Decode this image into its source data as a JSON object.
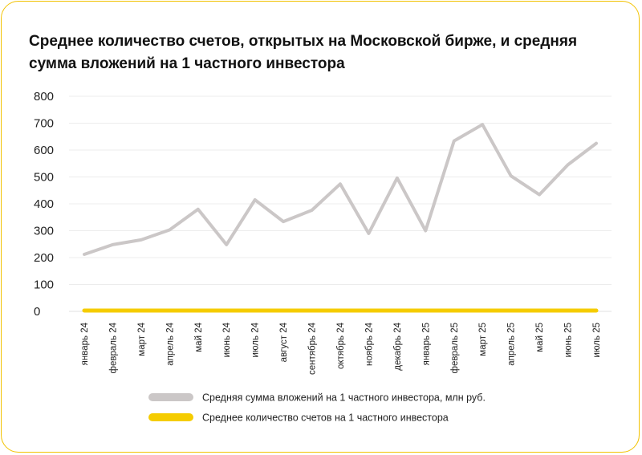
{
  "chart_data": {
    "type": "line",
    "title": "Среднее количество счетов, открытых на Московской бирже, и средняя сумма вложений на 1 частного инвестора",
    "xlabel": "",
    "ylabel": "",
    "ylim": [
      0,
      800
    ],
    "yticks": [
      "0",
      "100",
      "200",
      "300",
      "400",
      "500",
      "600",
      "700",
      "800"
    ],
    "categories": [
      "январь 24",
      "февраль 24",
      "март 24",
      "апрель 24",
      "май 24",
      "июнь 24",
      "июль 24",
      "август 24",
      "сентябрь 24",
      "октябрь 24",
      "ноябрь 24",
      "декабрь 24",
      "январь 25",
      "февраль 25",
      "март 25",
      "апрель 25",
      "май 25",
      "июнь 25",
      "июль 25"
    ],
    "grid": true,
    "legend_position": "bottom",
    "series": [
      {
        "name": "Средняя сумма вложений на 1 частного инвестора, млн руб.",
        "color": "#cbc7c7",
        "values": [
          212,
          248,
          266,
          303,
          380,
          248,
          415,
          334,
          376,
          474,
          290,
          496,
          300,
          634,
          695,
          504,
          434,
          545,
          625
        ]
      },
      {
        "name": "Среднее количество счетов на 1 частного инвестора",
        "color": "#f5cc00",
        "values": [
          3,
          3,
          3,
          3,
          3,
          3,
          3,
          3,
          3,
          3,
          3,
          3,
          3,
          3,
          3,
          3,
          3,
          3,
          3
        ]
      }
    ]
  }
}
